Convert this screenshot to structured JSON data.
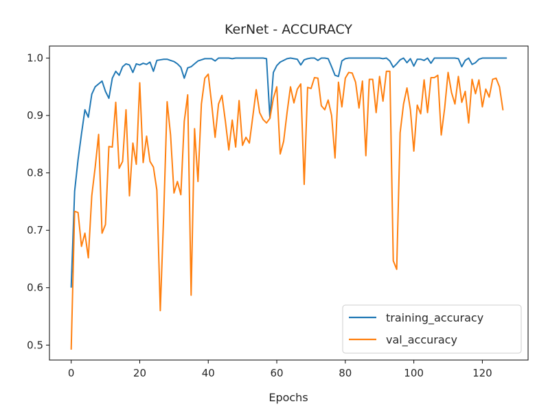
{
  "chart_data": {
    "type": "line",
    "title": "KerNet - ACCURACY",
    "xlabel": "Epochs",
    "ylabel": "",
    "xlim": [
      -6.35,
      133.35
    ],
    "ylim": [
      0.474,
      1.021
    ],
    "xticks": [
      0,
      20,
      40,
      60,
      80,
      100,
      120
    ],
    "yticks": [
      0.5,
      0.6,
      0.7,
      0.8,
      0.9,
      1.0
    ],
    "ytick_labels": [
      "0.5",
      "0.6",
      "0.7",
      "0.8",
      "0.9",
      "1.0"
    ],
    "grid": false,
    "legend_position": "lower-right",
    "series": [
      {
        "name": "training_accuracy",
        "color": "#1f77b4",
        "values": [
          0.601,
          0.768,
          0.823,
          0.868,
          0.91,
          0.897,
          0.937,
          0.95,
          0.955,
          0.96,
          0.942,
          0.93,
          0.965,
          0.977,
          0.97,
          0.985,
          0.99,
          0.988,
          0.975,
          0.99,
          0.988,
          0.991,
          0.989,
          0.993,
          0.977,
          0.996,
          0.997,
          0.998,
          0.998,
          0.996,
          0.994,
          0.99,
          0.984,
          0.965,
          0.983,
          0.985,
          0.99,
          0.995,
          0.997,
          0.999,
          0.999,
          0.999,
          0.995,
          1.0,
          1.0,
          1.0,
          1.0,
          0.999,
          1.0,
          1.0,
          1.0,
          1.0,
          1.0,
          1.0,
          1.0,
          1.0,
          1.0,
          0.999,
          0.895,
          0.975,
          0.987,
          0.993,
          0.996,
          0.999,
          1.0,
          0.999,
          0.998,
          0.988,
          0.997,
          0.999,
          1.0,
          1.0,
          0.996,
          1.0,
          1.0,
          0.999,
          0.985,
          0.97,
          0.968,
          0.995,
          0.999,
          1.0,
          1.0,
          1.0,
          1.0,
          1.0,
          1.0,
          1.0,
          1.0,
          1.0,
          1.0,
          0.999,
          1.0,
          0.995,
          0.984,
          0.99,
          0.997,
          1.0,
          0.992,
          0.999,
          0.986,
          0.998,
          0.998,
          0.996,
          1.0,
          0.991,
          1.0,
          1.0,
          1.0,
          1.0,
          1.0,
          1.0,
          1.0,
          0.999,
          0.985,
          0.996,
          1.0,
          0.989,
          0.992,
          0.998,
          1.0,
          1.0,
          1.0,
          1.0,
          1.0,
          1.0,
          1.0,
          1.0
        ]
      },
      {
        "name": "val_accuracy",
        "color": "#ff7f0e",
        "values": [
          0.493,
          0.733,
          0.731,
          0.672,
          0.695,
          0.652,
          0.76,
          0.81,
          0.867,
          0.695,
          0.71,
          0.846,
          0.845,
          0.923,
          0.808,
          0.82,
          0.91,
          0.76,
          0.852,
          0.815,
          0.957,
          0.818,
          0.864,
          0.82,
          0.81,
          0.77,
          0.56,
          0.728,
          0.924,
          0.866,
          0.765,
          0.785,
          0.762,
          0.89,
          0.936,
          0.587,
          0.877,
          0.785,
          0.92,
          0.965,
          0.972,
          0.92,
          0.862,
          0.92,
          0.935,
          0.89,
          0.84,
          0.892,
          0.845,
          0.926,
          0.848,
          0.862,
          0.852,
          0.898,
          0.945,
          0.905,
          0.893,
          0.887,
          0.895,
          0.93,
          0.95,
          0.833,
          0.855,
          0.905,
          0.95,
          0.922,
          0.946,
          0.955,
          0.78,
          0.949,
          0.947,
          0.966,
          0.965,
          0.917,
          0.91,
          0.927,
          0.9,
          0.826,
          0.958,
          0.915,
          0.965,
          0.975,
          0.974,
          0.958,
          0.913,
          0.96,
          0.83,
          0.963,
          0.963,
          0.905,
          0.968,
          0.925,
          0.977,
          0.977,
          0.647,
          0.632,
          0.87,
          0.92,
          0.948,
          0.91,
          0.838,
          0.918,
          0.903,
          0.962,
          0.905,
          0.966,
          0.966,
          0.97,
          0.866,
          0.913,
          0.975,
          0.94,
          0.92,
          0.968,
          0.923,
          0.942,
          0.887,
          0.963,
          0.938,
          0.962,
          0.915,
          0.946,
          0.932,
          0.963,
          0.965,
          0.95,
          0.91
        ]
      }
    ]
  }
}
